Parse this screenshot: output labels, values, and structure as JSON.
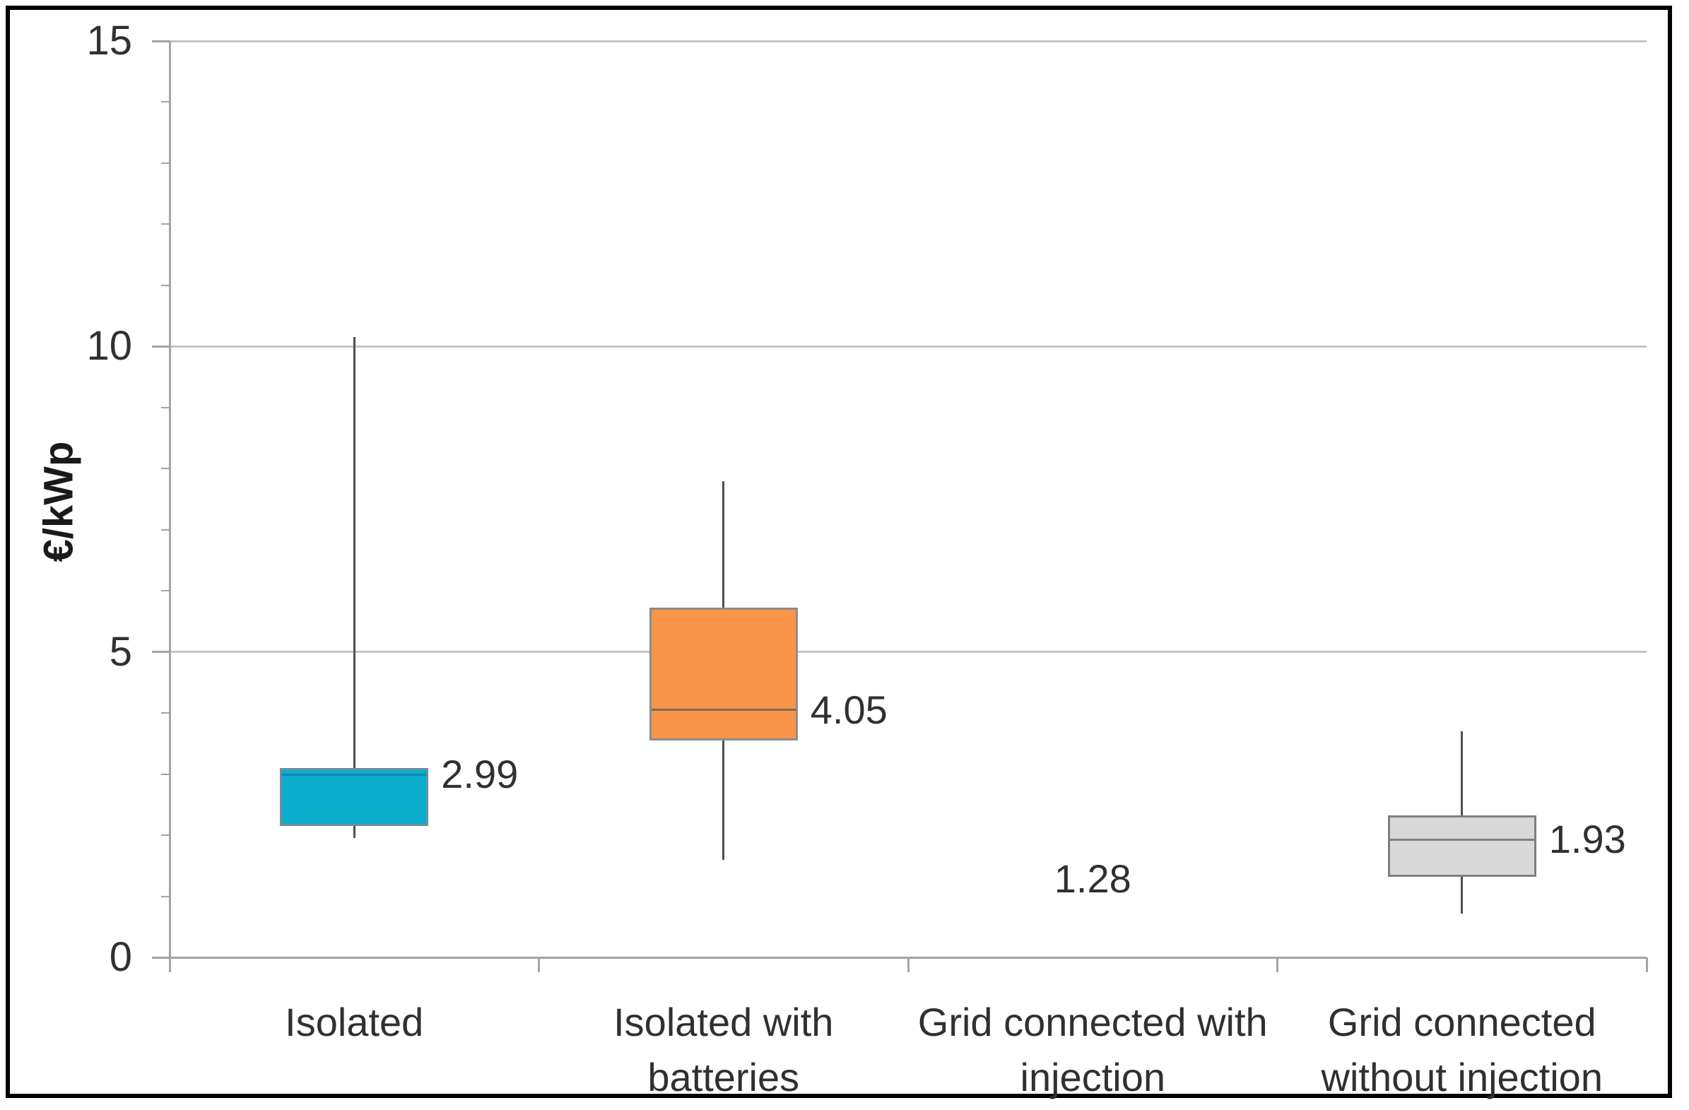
{
  "chart_data": {
    "type": "boxplot",
    "title": "",
    "ylabel": "€/kWp",
    "xlabel": "",
    "ylim": [
      0,
      15
    ],
    "yticks": [
      0,
      5,
      10,
      15
    ],
    "y_minor_step": 1,
    "grid": true,
    "legend": "none",
    "categories": [
      "Isolated",
      "Isolated with\nbatteries",
      "Grid connected with\ninjection",
      "Grid connected\nwithout injection"
    ],
    "series": [
      {
        "name": "Isolated",
        "min": 1.95,
        "q1": 2.15,
        "median": 2.99,
        "q3": 3.1,
        "max": 10.15,
        "label": "2.99",
        "fill": "#0aadcb",
        "border": "#6b8f9c",
        "median_color": "#1586ad"
      },
      {
        "name": "Isolated with batteries",
        "min": 1.6,
        "q1": 3.55,
        "median": 4.05,
        "q3": 5.73,
        "max": 7.8,
        "label": "4.05",
        "fill": "#f8954a",
        "border": "#8c8c8c",
        "median_color": "#7a6a55"
      },
      {
        "name": "Grid connected with injection",
        "value": 1.28,
        "label": "1.28"
      },
      {
        "name": "Grid connected without injection",
        "min": 0.72,
        "q1": 1.32,
        "median": 1.93,
        "q3": 2.32,
        "max": 3.7,
        "label": "1.93",
        "fill": "#d9d9d9",
        "border": "#7f7f7f",
        "median_color": "#7f7f7f"
      }
    ],
    "colors": {
      "gridline": "#c5c5c5",
      "axis": "#a4a4a4",
      "whisker": "#4f4f4f",
      "text": "#303030"
    }
  }
}
